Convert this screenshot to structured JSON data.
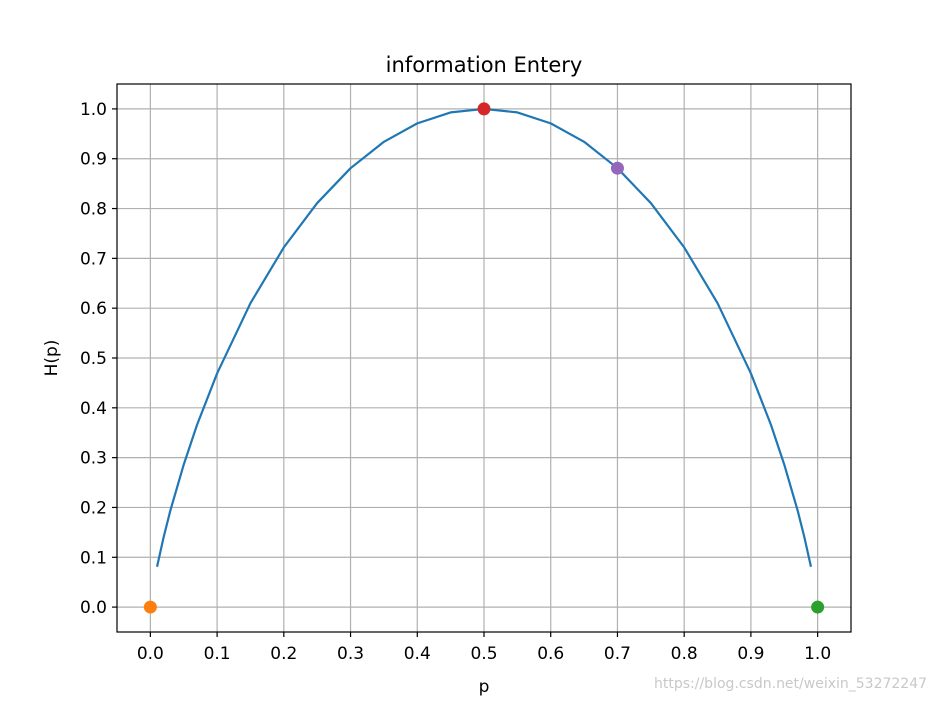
{
  "chart_data": {
    "type": "line",
    "title": "information Entery",
    "xlabel": "p",
    "ylabel": "H(p)",
    "xlim": [
      -0.05,
      1.05
    ],
    "ylim": [
      -0.05,
      1.05
    ],
    "xticks": [
      "0.0",
      "0.1",
      "0.2",
      "0.3",
      "0.4",
      "0.5",
      "0.6",
      "0.7",
      "0.8",
      "0.9",
      "1.0"
    ],
    "yticks": [
      "0.0",
      "0.1",
      "0.2",
      "0.3",
      "0.4",
      "0.5",
      "0.6",
      "0.7",
      "0.8",
      "0.9",
      "1.0"
    ],
    "grid": true,
    "series": [
      {
        "style": "line",
        "color": "#1f77b4",
        "x": [
          0.01,
          0.02,
          0.03,
          0.05,
          0.07,
          0.1,
          0.15,
          0.2,
          0.25,
          0.3,
          0.35,
          0.4,
          0.45,
          0.5,
          0.55,
          0.6,
          0.65,
          0.7,
          0.75,
          0.8,
          0.85,
          0.9,
          0.93,
          0.95,
          0.97,
          0.98,
          0.99
        ],
        "y": [
          0.081,
          0.141,
          0.194,
          0.286,
          0.366,
          0.469,
          0.61,
          0.722,
          0.811,
          0.881,
          0.934,
          0.971,
          0.993,
          1.0,
          0.993,
          0.971,
          0.934,
          0.881,
          0.811,
          0.722,
          0.61,
          0.469,
          0.366,
          0.286,
          0.194,
          0.141,
          0.081
        ]
      },
      {
        "style": "point",
        "color": "#ff7f0e",
        "x": [
          0.0
        ],
        "y": [
          0.0
        ]
      },
      {
        "style": "point",
        "color": "#2ca02c",
        "x": [
          1.0
        ],
        "y": [
          0.0
        ]
      },
      {
        "style": "point",
        "color": "#d62728",
        "x": [
          0.5
        ],
        "y": [
          1.0
        ]
      },
      {
        "style": "point",
        "color": "#9467bd",
        "x": [
          0.7
        ],
        "y": [
          0.881
        ]
      }
    ]
  },
  "watermark": "https://blog.csdn.net/weixin_53272247"
}
